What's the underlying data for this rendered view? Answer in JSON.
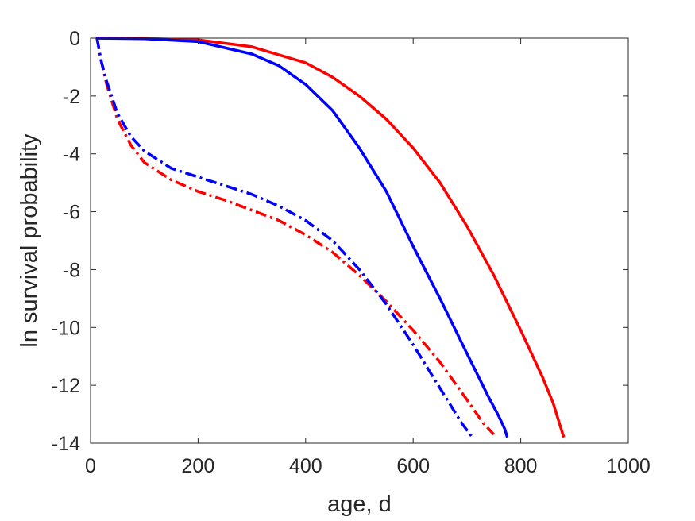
{
  "chart_data": {
    "type": "line",
    "title": "",
    "xlabel": "age, d",
    "ylabel": "ln survival probability",
    "xlim": [
      0,
      1000
    ],
    "ylim": [
      -14,
      0
    ],
    "x_ticks": [
      0,
      200,
      400,
      600,
      800,
      1000
    ],
    "y_ticks": [
      0,
      -2,
      -4,
      -6,
      -8,
      -10,
      -12,
      -14
    ],
    "grid": false,
    "legend": "none",
    "series": [
      {
        "color": "#ff0000",
        "style": "solid",
        "x": [
          10,
          100,
          200,
          300,
          400,
          450,
          500,
          550,
          600,
          650,
          700,
          750,
          800,
          840,
          860,
          870,
          880
        ],
        "y": [
          0,
          -0.01,
          -0.06,
          -0.3,
          -0.85,
          -1.35,
          -2.0,
          -2.8,
          -3.8,
          -5.0,
          -6.5,
          -8.2,
          -10.1,
          -11.7,
          -12.6,
          -13.2,
          -13.8
        ]
      },
      {
        "color": "#0000ff",
        "style": "solid",
        "x": [
          10,
          100,
          200,
          300,
          350,
          400,
          450,
          500,
          550,
          600,
          650,
          700,
          740,
          760,
          770,
          775
        ],
        "y": [
          0,
          -0.02,
          -0.12,
          -0.55,
          -0.95,
          -1.6,
          -2.5,
          -3.8,
          -5.3,
          -7.2,
          -9.0,
          -10.9,
          -12.4,
          -13.1,
          -13.5,
          -13.8
        ]
      },
      {
        "color": "#ff0000",
        "style": "dashdot",
        "x": [
          12,
          20,
          30,
          50,
          75,
          100,
          150,
          200,
          250,
          300,
          350,
          400,
          450,
          500,
          550,
          600,
          650,
          700,
          730,
          750
        ],
        "y": [
          0,
          -0.8,
          -1.6,
          -2.8,
          -3.7,
          -4.3,
          -4.9,
          -5.3,
          -5.6,
          -5.95,
          -6.3,
          -6.8,
          -7.4,
          -8.2,
          -9.1,
          -10.1,
          -11.2,
          -12.5,
          -13.3,
          -13.7
        ]
      },
      {
        "color": "#0000ff",
        "style": "dashdot",
        "x": [
          12,
          20,
          30,
          50,
          75,
          100,
          150,
          200,
          250,
          300,
          350,
          400,
          450,
          500,
          550,
          600,
          650,
          690,
          710
        ],
        "y": [
          0,
          -0.8,
          -1.5,
          -2.6,
          -3.4,
          -3.9,
          -4.5,
          -4.8,
          -5.1,
          -5.4,
          -5.8,
          -6.3,
          -7.0,
          -8.0,
          -9.2,
          -10.6,
          -12.1,
          -13.3,
          -13.8
        ]
      }
    ]
  }
}
